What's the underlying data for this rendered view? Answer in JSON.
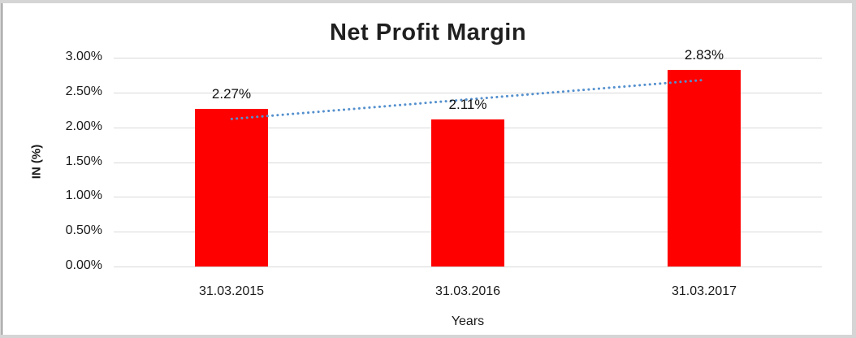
{
  "chart_data": {
    "type": "bar",
    "title": "Net Profit Margin",
    "xlabel": "Years",
    "ylabel": "IN (%)",
    "categories": [
      "31.03.2015",
      "31.03.2016",
      "31.03.2017"
    ],
    "values": [
      2.27,
      2.11,
      2.83
    ],
    "data_labels": [
      "2.27%",
      "2.11%",
      "2.83%"
    ],
    "ylim": [
      0,
      3
    ],
    "ytick_step": 0.5,
    "ytick_labels": [
      "0.00%",
      "0.50%",
      "1.00%",
      "1.50%",
      "2.00%",
      "2.50%",
      "3.00%"
    ],
    "grid": true,
    "legend": "none",
    "bar_color": "#FF0000",
    "gridline_color": "#D9D9D9",
    "trendline": {
      "type": "linear",
      "style": "dotted",
      "color": "#5590CE",
      "start_value": 2.12,
      "end_value": 2.68
    }
  }
}
